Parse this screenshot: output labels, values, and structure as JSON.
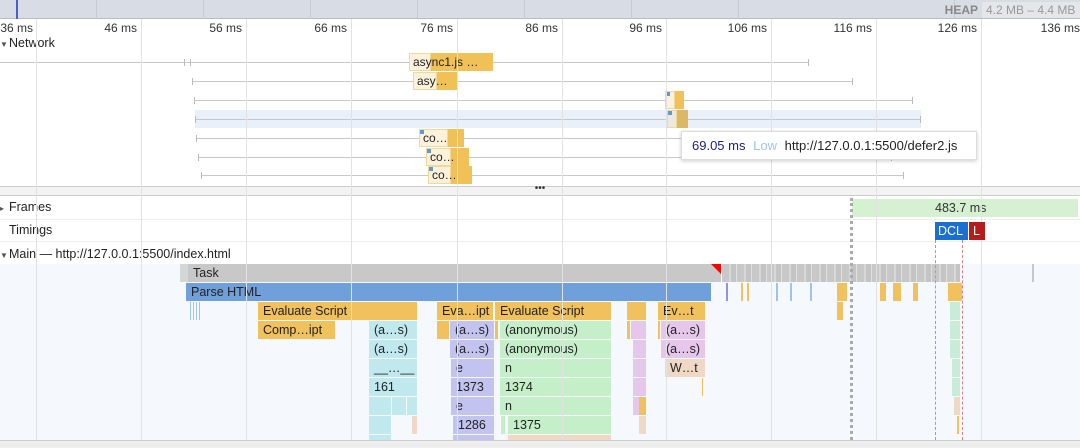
{
  "overview": {
    "heap_label": "HEAP",
    "heap_range": "4.2 MB – 4.4 MB"
  },
  "ruler": {
    "ticks": [
      "36 ms",
      "46 ms",
      "56 ms",
      "66 ms",
      "76 ms",
      "86 ms",
      "96 ms",
      "106 ms",
      "116 ms",
      "126 ms",
      "136 ms"
    ]
  },
  "network": {
    "label": "Network",
    "rows": [
      {
        "label": "async1.js …"
      },
      {
        "label": "asy…"
      },
      {
        "label": ""
      },
      {
        "label": ""
      },
      {
        "label": "co…"
      },
      {
        "label": "co…"
      },
      {
        "label": "co…"
      }
    ],
    "tooltip": {
      "duration": "69.05 ms",
      "priority": "Low",
      "url": "http://127.0.0.1:5500/defer2.js"
    }
  },
  "divider": {
    "handle": "•••"
  },
  "tracks": {
    "frames": {
      "label": "Frames",
      "value": "483.7 ms"
    },
    "timings": {
      "label": "Timings",
      "dcl": "DCL",
      "load": "L"
    },
    "main": {
      "label": "Main — http://127.0.0.1:5500/index.html"
    }
  },
  "flame": {
    "task": "Task",
    "parse": "Parse HTML",
    "evaluate_script": "Evaluate Script",
    "eva_ipt": "Eva…ipt",
    "ev_t": "Ev…t",
    "comp_ipt": "Comp…ipt",
    "a_s": "(a…s)",
    "anonymous": "(anonymous)",
    "underscore": "__…__",
    "e": "e",
    "n": "n",
    "w_t": "W…t",
    "n161": "161",
    "n1373": "1373",
    "n1374": "1374",
    "n1286": "1286",
    "n1375": "1375"
  },
  "colors": {
    "dcl": "#1a6fd0",
    "load": "#b71c1c",
    "scripting": "#f0c15c",
    "parse": "#6fa0dc",
    "frames": "#d6f0d2"
  }
}
